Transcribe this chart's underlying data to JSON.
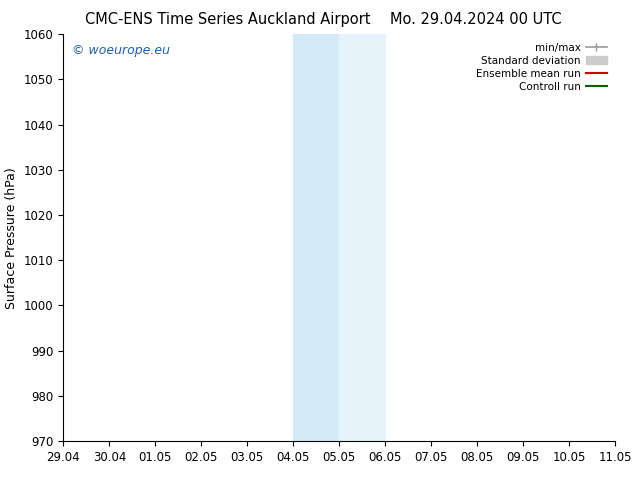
{
  "title_left": "CMC-ENS Time Series Auckland Airport",
  "title_right": "Mo. 29.04.2024 00 UTC",
  "ylabel": "Surface Pressure (hPa)",
  "xlabel_ticks": [
    "29.04",
    "30.04",
    "01.05",
    "02.05",
    "03.05",
    "04.05",
    "05.05",
    "06.05",
    "07.05",
    "08.05",
    "09.05",
    "10.05",
    "11.05"
  ],
  "xlim": [
    0,
    12
  ],
  "ylim": [
    970,
    1060
  ],
  "yticks": [
    970,
    980,
    990,
    1000,
    1010,
    1020,
    1030,
    1040,
    1050,
    1060
  ],
  "highlight_region_1": [
    5,
    6
  ],
  "highlight_region_2": [
    6,
    7
  ],
  "highlight_color_1": "#d4eaf8",
  "highlight_color_2": "#e6f3fb",
  "watermark_text": "© woeurope.eu",
  "watermark_color": "#1a5fb4",
  "legend_items": [
    {
      "label": "min/max",
      "color": "#999999",
      "lw": 1.2
    },
    {
      "label": "Standard deviation",
      "color": "#cccccc",
      "lw": 5
    },
    {
      "label": "Ensemble mean run",
      "color": "#cc0000",
      "lw": 1.5
    },
    {
      "label": "Controll run",
      "color": "#006600",
      "lw": 1.5
    }
  ],
  "bg_color": "#ffffff",
  "font_size_title": 10.5,
  "font_size_ticks": 8.5,
  "font_size_ylabel": 9,
  "font_size_watermark": 9,
  "font_size_legend": 7.5
}
